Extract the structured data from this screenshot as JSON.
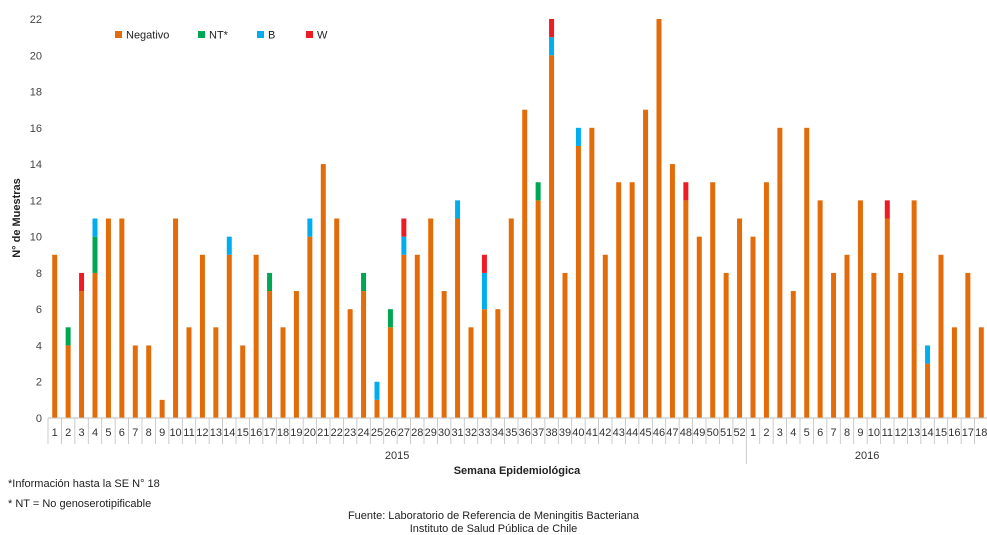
{
  "chart_data": {
    "type": "bar",
    "stacked": true,
    "title": "",
    "ylabel": "N° de Muestras",
    "xlabel": "Semana Epidemiológica",
    "ylim": [
      0,
      22
    ],
    "yticks": [
      0,
      2,
      4,
      6,
      8,
      10,
      12,
      14,
      16,
      18,
      20,
      22
    ],
    "grid": false,
    "legend_position": "top-left",
    "groups": [
      {
        "label": "2015",
        "weeks": [
          "1",
          "2",
          "3",
          "4",
          "5",
          "6",
          "7",
          "8",
          "9",
          "10",
          "11",
          "12",
          "13",
          "14",
          "15",
          "16",
          "17",
          "18",
          "19",
          "20",
          "21",
          "22",
          "23",
          "24",
          "25",
          "26",
          "27",
          "28",
          "29",
          "30",
          "31",
          "32",
          "33",
          "34",
          "35",
          "36",
          "37",
          "38",
          "39",
          "40",
          "41",
          "42",
          "43",
          "44",
          "45",
          "46",
          "47",
          "48",
          "49",
          "50",
          "51",
          "52"
        ]
      },
      {
        "label": "2016",
        "weeks": [
          "1",
          "2",
          "3",
          "4",
          "5",
          "6",
          "7",
          "8",
          "9",
          "10",
          "11",
          "12",
          "13",
          "14",
          "15",
          "16",
          "17",
          "18"
        ]
      }
    ],
    "series": [
      {
        "name": "Negativo",
        "color": "#E36C0A",
        "values": [
          9,
          4,
          7,
          8,
          11,
          11,
          4,
          4,
          1,
          11,
          5,
          9,
          5,
          9,
          4,
          9,
          7,
          5,
          7,
          10,
          14,
          11,
          6,
          7,
          1,
          5,
          9,
          9,
          11,
          7,
          11,
          5,
          6,
          6,
          11,
          17,
          12,
          20,
          8,
          15,
          16,
          9,
          13,
          13,
          17,
          22,
          14,
          12,
          10,
          13,
          8,
          11,
          10,
          13,
          16,
          7,
          16,
          12,
          8,
          9,
          12,
          8,
          11,
          8,
          12,
          3,
          9,
          5,
          8,
          5
        ]
      },
      {
        "name": "NT*",
        "color": "#00A651",
        "values": [
          0,
          1,
          0,
          2,
          0,
          0,
          0,
          0,
          0,
          0,
          0,
          0,
          0,
          0,
          0,
          0,
          1,
          0,
          0,
          0,
          0,
          0,
          0,
          1,
          0,
          1,
          0,
          0,
          0,
          0,
          0,
          0,
          0,
          0,
          0,
          0,
          1,
          0,
          0,
          0,
          0,
          0,
          0,
          0,
          0,
          0,
          0,
          0,
          0,
          0,
          0,
          0,
          0,
          0,
          0,
          0,
          0,
          0,
          0,
          0,
          0,
          0,
          0,
          0,
          0,
          0,
          0,
          0,
          0,
          0
        ]
      },
      {
        "name": "B",
        "color": "#00AEEF",
        "values": [
          0,
          0,
          0,
          1,
          0,
          0,
          0,
          0,
          0,
          0,
          0,
          0,
          0,
          1,
          0,
          0,
          0,
          0,
          0,
          1,
          0,
          0,
          0,
          0,
          1,
          0,
          1,
          0,
          0,
          0,
          1,
          0,
          2,
          0,
          0,
          0,
          0,
          1,
          0,
          1,
          0,
          0,
          0,
          0,
          0,
          0,
          0,
          0,
          0,
          0,
          0,
          0,
          0,
          0,
          0,
          0,
          0,
          0,
          0,
          0,
          0,
          0,
          0,
          0,
          0,
          1,
          0,
          0,
          0,
          0
        ]
      },
      {
        "name": "W",
        "color": "#ED1C24",
        "values": [
          0,
          0,
          1,
          0,
          0,
          0,
          0,
          0,
          0,
          0,
          0,
          0,
          0,
          0,
          0,
          0,
          0,
          0,
          0,
          0,
          0,
          0,
          0,
          0,
          0,
          0,
          1,
          0,
          0,
          0,
          0,
          0,
          1,
          0,
          0,
          0,
          0,
          1,
          0,
          0,
          0,
          0,
          0,
          0,
          0,
          0,
          0,
          1,
          0,
          0,
          0,
          0,
          0,
          0,
          0,
          0,
          0,
          0,
          0,
          0,
          0,
          0,
          1,
          0,
          0,
          0,
          0,
          0,
          0,
          0
        ]
      }
    ]
  },
  "notes": {
    "info": "*Información  hasta la SE N° 18",
    "nt": "* NT = No genoserotipificable"
  },
  "source": {
    "line1": "Fuente: Laboratorio de Referencia  de Meningitis Bacteriana",
    "line2": "Instituto de Salud Pública de Chile"
  }
}
